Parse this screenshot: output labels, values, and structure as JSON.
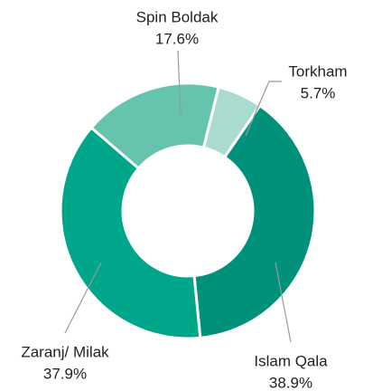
{
  "chart_data": {
    "type": "donut",
    "categories": [
      "Torkham",
      "Islam Qala",
      "Zaranj/ Milak",
      "Spin Boldak"
    ],
    "values": [
      5.7,
      38.9,
      37.9,
      17.6
    ],
    "value_labels": [
      "5.7%",
      "38.9%",
      "37.9%",
      "17.6%"
    ],
    "colors": [
      "#a9dccf",
      "#00917a",
      "#00a68a",
      "#66c3ad"
    ]
  }
}
